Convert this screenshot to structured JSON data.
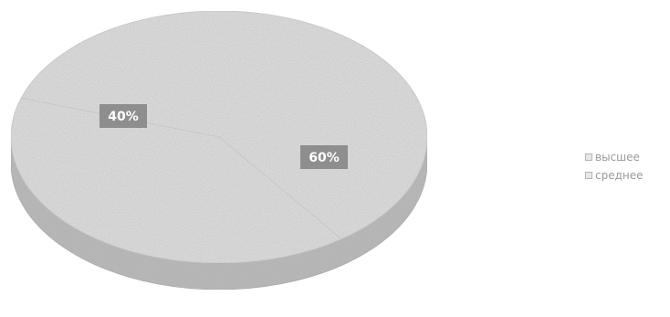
{
  "chart_data": {
    "type": "pie",
    "title": "",
    "categories": [
      "высшее",
      "среднее"
    ],
    "values": [
      60,
      40
    ],
    "data_labels": [
      "60%",
      "40%"
    ],
    "legend_position": "right",
    "style": "3d",
    "colors": {
      "top_face": "#e4e4e4",
      "side_face": "#bdbdbd",
      "label_box": "#8e8e8e",
      "label_text": "#ffffff",
      "legend_text": "#9a9a9a"
    }
  }
}
